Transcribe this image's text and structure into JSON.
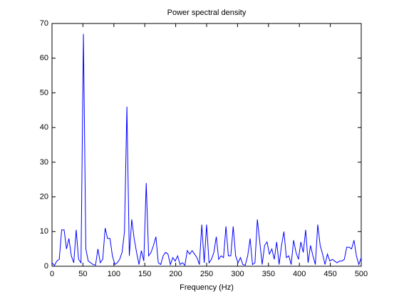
{
  "chart_data": {
    "type": "line",
    "title": "Power spectral density",
    "xlabel": "Frequency (Hz)",
    "x": [
      0,
      3.90625,
      7.8125,
      11.71875,
      15.625,
      19.53125,
      23.4375,
      27.34375,
      31.25,
      35.15625,
      39.0625,
      42.96875,
      46.875,
      50.78125,
      54.6875,
      58.59375,
      62.5,
      66.40625,
      70.3125,
      74.21875,
      78.125,
      82.03125,
      85.9375,
      89.84375,
      93.75,
      97.65625,
      101.5625,
      105.46875,
      109.375,
      113.28125,
      117.1875,
      121.09375,
      125,
      128.90625,
      132.8125,
      136.71875,
      140.625,
      144.53125,
      148.4375,
      152.34375,
      156.25,
      160.15625,
      164.0625,
      167.96875,
      171.875,
      175.78125,
      179.6875,
      183.59375,
      187.5,
      191.40625,
      195.3125,
      199.21875,
      203.125,
      207.03125,
      210.9375,
      214.84375,
      218.75,
      222.65625,
      226.5625,
      230.46875,
      234.375,
      238.28125,
      242.1875,
      246.09375,
      250,
      253.90625,
      257.8125,
      261.71875,
      265.625,
      269.53125,
      273.4375,
      277.34375,
      281.25,
      285.15625,
      289.0625,
      292.96875,
      296.875,
      300.78125,
      304.6875,
      308.59375,
      312.5,
      316.40625,
      320.3125,
      324.21875,
      328.125,
      332.03125,
      335.9375,
      339.84375,
      343.75,
      347.65625,
      351.5625,
      355.46875,
      359.375,
      363.28125,
      367.1875,
      371.09375,
      375,
      378.90625,
      382.8125,
      386.71875,
      390.625,
      394.53125,
      398.4375,
      402.34375,
      406.25,
      410.15625,
      414.0625,
      417.96875,
      421.875,
      425.78125,
      429.6875,
      433.59375,
      437.5,
      441.40625,
      445.3125,
      449.21875,
      453.125,
      457.03125,
      460.9375,
      464.84375,
      468.75,
      472.65625,
      476.5625,
      480.46875,
      484.375,
      488.28125,
      492.1875,
      496.09375,
      500
    ],
    "values": [
      1,
      0.2,
      1.5,
      2,
      10.5,
      10.5,
      5,
      8,
      3,
      1,
      10.5,
      2,
      1,
      67,
      5,
      1.5,
      1,
      0.5,
      0.3,
      5,
      1,
      2,
      11,
      8,
      8,
      3,
      0.5,
      1,
      2,
      4,
      10,
      46,
      3,
      13.5,
      8,
      4,
      0.5,
      4.5,
      1.5,
      24,
      3,
      4,
      6,
      8.5,
      1,
      0.5,
      3,
      4,
      3.5,
      0.5,
      2.5,
      1.5,
      3,
      0.5,
      1,
      0.3,
      4.5,
      3.5,
      4.5,
      3.5,
      2.5,
      0.5,
      12,
      1,
      12,
      1,
      2,
      4,
      8.5,
      2,
      3,
      2.5,
      11.5,
      3,
      3,
      11.5,
      3,
      1,
      2.5,
      0.5,
      0.3,
      3,
      8,
      0.5,
      1,
      13.5,
      7,
      0.5,
      6,
      7,
      3.5,
      5,
      2,
      7,
      0.5,
      6,
      10,
      2.5,
      3,
      0.5,
      7.5,
      4,
      2,
      7,
      4,
      10.5,
      1,
      6,
      3,
      0.5,
      12,
      6,
      3.5,
      0.5,
      3.5,
      1.5,
      2,
      1.5,
      1,
      1.5,
      1.5,
      2,
      5.5,
      5.5,
      5,
      7.5,
      3,
      0.5,
      2.5
    ],
    "color": "#0000ff",
    "xlim": [
      0,
      500
    ],
    "xticks": [
      0,
      50,
      100,
      150,
      200,
      250,
      300,
      350,
      400,
      450,
      500
    ],
    "ylim": [
      0,
      70
    ],
    "yticks": [
      0,
      10,
      20,
      30,
      40,
      50,
      60,
      70
    ]
  }
}
